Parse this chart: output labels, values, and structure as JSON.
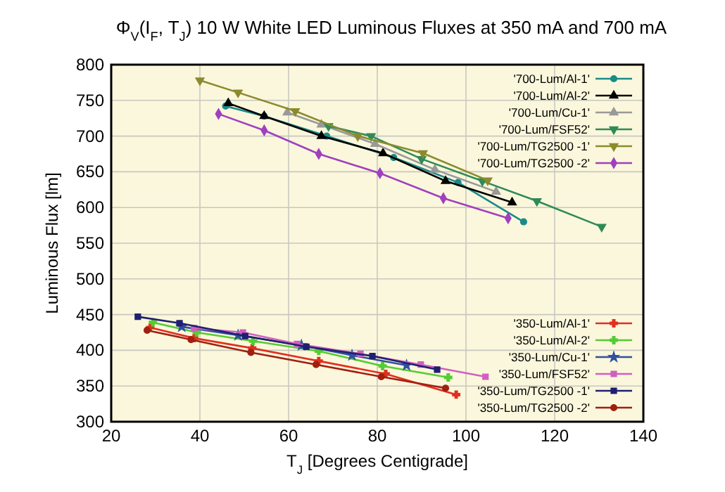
{
  "chart_data": {
    "type": "line",
    "title": "Φ$_{V}$(I$_{F}$, T$_{J}$) 10 W White LED Luminous Fluxes at 350 mA and 700 mA",
    "xlabel": "T$_{J}$ [Degrees Centigrade]",
    "ylabel": "Luminous Flux [lm]",
    "xlim": [
      20,
      140
    ],
    "xticks": [
      20,
      40,
      60,
      80,
      100,
      120,
      140
    ],
    "ylim": [
      300,
      800
    ],
    "yticks": [
      300,
      350,
      400,
      450,
      500,
      550,
      600,
      650,
      700,
      750,
      800
    ],
    "grid": true,
    "legend": "right",
    "series": [
      {
        "name": "'700-Lum/Al-1'",
        "color": "#1a8a8a",
        "marker": "circle",
        "x": [
          45.8,
          54.5,
          68.6,
          83.7,
          98.2,
          113
        ],
        "values": [
          742,
          728,
          700,
          670,
          635,
          580
        ]
      },
      {
        "name": "'700-Lum/Al-2'",
        "color": "#000000",
        "marker": "triangle",
        "x": [
          46.4,
          54.5,
          67.4,
          81.3,
          95.4,
          110.4
        ],
        "values": [
          746,
          728,
          700,
          676,
          637,
          607
        ]
      },
      {
        "name": "'700-Lum/Cu-1'",
        "color": "#999999",
        "marker": "triangle",
        "x": [
          59.7,
          67.4,
          79.5,
          93,
          106.8
        ],
        "values": [
          733,
          716,
          689,
          653,
          622
        ]
      },
      {
        "name": "'700-Lum/FSF52'",
        "color": "#2e8b57",
        "marker": "triangle-down",
        "x": [
          69,
          78.6,
          90,
          103.7,
          116,
          130.6
        ],
        "values": [
          714,
          700,
          668,
          637,
          609,
          573
        ]
      },
      {
        "name": "'700-Lum/TG2500 -1'",
        "color": "#8b8b2e",
        "marker": "triangle-down",
        "x": [
          40,
          48.6,
          61.5,
          75.6,
          90.3,
          104.9
        ],
        "values": [
          778,
          761,
          735,
          700,
          676,
          638
        ]
      },
      {
        "name": "'700-Lum/TG2500 -2'",
        "color": "#a040c0",
        "marker": "diamond",
        "x": [
          44.2,
          54.5,
          66.8,
          80.6,
          94.9,
          109.5
        ],
        "values": [
          731,
          708,
          675,
          648,
          613,
          585
        ]
      },
      {
        "name": "'350-Lum/Al-1'",
        "color": "#e03020",
        "marker": "cross",
        "x": [
          28.8,
          38.7,
          51.8,
          66.8,
          81.9,
          97.8
        ],
        "values": [
          432,
          417,
          403,
          385,
          367,
          338
        ]
      },
      {
        "name": "'350-Lum/Al-2'",
        "color": "#55cc33",
        "marker": "cross",
        "x": [
          29.4,
          39.3,
          52,
          66.8,
          81.2,
          96
        ],
        "values": [
          439,
          425,
          413,
          399,
          378,
          362
        ]
      },
      {
        "name": "'350-Lum/Cu-1'",
        "color": "#3050a0",
        "marker": "star",
        "x": [
          35.9,
          48.6,
          62.9,
          74.3,
          86.6
        ],
        "values": [
          433,
          421,
          407,
          393,
          379
        ]
      },
      {
        "name": "'350-Lum/FSF52'",
        "color": "#d060c0",
        "marker": "square",
        "x": [
          38.7,
          49.7,
          61.9,
          76.2,
          89.8,
          104.4
        ],
        "values": [
          431,
          425,
          409,
          395,
          380,
          363
        ]
      },
      {
        "name": "'350-Lum/TG2500 -1'",
        "color": "#202070",
        "marker": "square",
        "x": [
          26,
          35.4,
          50.2,
          64,
          78.9,
          93.5
        ],
        "values": [
          447,
          438,
          420,
          405,
          392,
          373
        ]
      },
      {
        "name": "'350-Lum/TG2500 -2'",
        "color": "#a02010",
        "marker": "circle",
        "x": [
          28.1,
          38,
          51.5,
          66.2,
          80.9,
          95.4
        ],
        "values": [
          428,
          415,
          397,
          380,
          363,
          347
        ]
      }
    ]
  }
}
